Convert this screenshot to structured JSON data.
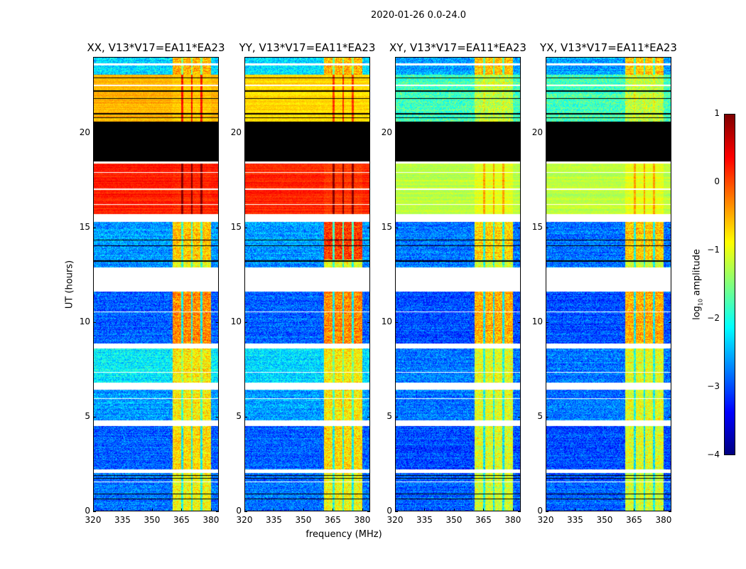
{
  "suptitle": "2020-01-26 0.0-24.0",
  "chart_data": {
    "type": "heatmap",
    "xlabel": "frequency (MHz)",
    "ylabel": "UT (hours)",
    "xlim": [
      320,
      384
    ],
    "ylim": [
      0,
      24
    ],
    "xticks": [
      320,
      335,
      350,
      365,
      380
    ],
    "yticks": [
      0,
      5,
      10,
      15,
      20
    ],
    "panels": [
      {
        "title": "XX, V13*V17=EA11*EA23",
        "bg": [
          -2.8,
          -2.9,
          -2.6,
          -2.2,
          -2.9,
          -2.7,
          -2.6,
          0.25,
          -0.5,
          -2.3
        ],
        "rfi": [
          -0.9,
          -0.7,
          -0.8,
          -0.8,
          -0.3,
          -1.0,
          -0.6,
          0.2,
          -0.6,
          -0.5
        ]
      },
      {
        "title": "YY, V13*V17=EA11*EA23",
        "bg": [
          -2.8,
          -2.9,
          -2.6,
          -2.3,
          -2.9,
          -2.7,
          -2.6,
          0.2,
          -0.7,
          -2.3
        ],
        "rfi": [
          -0.9,
          -0.7,
          -0.8,
          -0.8,
          -0.3,
          -1.0,
          0.1,
          0.1,
          -0.7,
          -0.5
        ]
      },
      {
        "title": "XY, V13*V17=EA11*EA23",
        "bg": [
          -2.9,
          -3.0,
          -2.8,
          -2.8,
          -3.0,
          -2.8,
          -2.8,
          -1.2,
          -1.8,
          -2.6
        ],
        "rfi": [
          -1.1,
          -1.0,
          -1.0,
          -1.0,
          -0.5,
          -1.1,
          -0.7,
          -1.0,
          -1.2,
          -0.6
        ]
      },
      {
        "title": "YX, V13*V17=EA11*EA23",
        "bg": [
          -2.9,
          -3.0,
          -2.8,
          -2.8,
          -3.0,
          -2.8,
          -2.8,
          -1.2,
          -1.8,
          -2.6
        ],
        "rfi": [
          -1.1,
          -1.0,
          -1.0,
          -1.0,
          -0.5,
          -1.1,
          -0.6,
          -1.0,
          -1.2,
          -0.6
        ]
      }
    ],
    "time_segments_hours": [
      [
        0,
        2.0
      ],
      [
        2.2,
        4.5
      ],
      [
        4.8,
        6.4
      ],
      [
        6.8,
        8.6
      ],
      [
        8.85,
        11.6
      ],
      [
        12.9,
        13.3
      ],
      [
        13.3,
        15.3
      ],
      [
        15.7,
        18.4
      ],
      [
        20.6,
        23.1
      ],
      [
        23.1,
        24
      ]
    ],
    "flagged_white_hours": [
      [
        2.0,
        2.2
      ],
      [
        4.5,
        4.8
      ],
      [
        6.4,
        6.8
      ],
      [
        8.6,
        8.85
      ],
      [
        11.6,
        12.9
      ],
      [
        15.3,
        15.7
      ],
      [
        18.4,
        18.5
      ],
      [
        23.6,
        23.7
      ],
      [
        1.5,
        1.55
      ],
      [
        5.9,
        5.95
      ],
      [
        7.3,
        7.35
      ],
      [
        10.5,
        10.55
      ],
      [
        16.2,
        16.25
      ],
      [
        17.0,
        17.05
      ],
      [
        17.9,
        17.95
      ],
      [
        22.5,
        22.55
      ]
    ],
    "zero_black_hours": [
      [
        18.5,
        19.2
      ],
      [
        19.35,
        20.6
      ],
      [
        0.6,
        0.65
      ],
      [
        0.85,
        0.9
      ],
      [
        1.7,
        1.75
      ],
      [
        1.85,
        1.9
      ],
      [
        13.2,
        13.25
      ],
      [
        14.0,
        14.05
      ],
      [
        14.3,
        14.35
      ],
      [
        20.8,
        20.85
      ],
      [
        21.0,
        21.05
      ],
      [
        21.8,
        21.85
      ],
      [
        22.2,
        22.25
      ],
      [
        22.9,
        22.95
      ]
    ],
    "rfi_band_mhz": [
      360.5,
      380.5
    ],
    "rfi_dividers_mhz": [
      365.5,
      370.5,
      375.5
    ],
    "colorbar": {
      "label": "log10 amplitude",
      "label_main": "log",
      "label_sub": "10",
      "label_rest": " amplitude",
      "range": [
        -4,
        1
      ],
      "ticks": [
        "1",
        "0",
        "−1",
        "−2",
        "−3",
        "−4"
      ],
      "colormap": "jet"
    }
  }
}
